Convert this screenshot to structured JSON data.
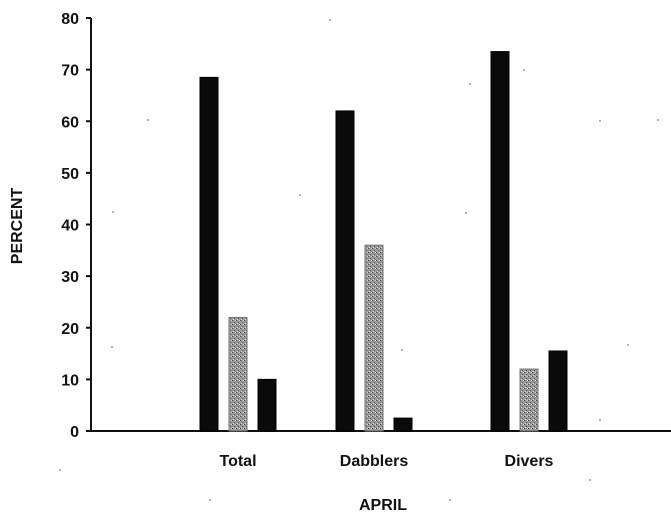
{
  "chart_data": {
    "type": "bar",
    "xlabel": "APRIL",
    "ylabel": "PERCENT",
    "ylim": [
      0,
      80
    ],
    "yticks": [
      0,
      10,
      20,
      30,
      40,
      50,
      60,
      70,
      80
    ],
    "categories": [
      "Total",
      "Dabblers",
      "Divers"
    ],
    "series": [
      {
        "values": [
          68.5,
          62,
          73.5
        ],
        "color": "#0a0a0a",
        "fill": "solid"
      },
      {
        "values": [
          22,
          36,
          12
        ],
        "color": "#8c8c8c",
        "fill": "stippled"
      },
      {
        "values": [
          10,
          2.5,
          15.5
        ],
        "color": "#0a0a0a",
        "fill": "solid"
      }
    ],
    "grid": false,
    "legend": "none"
  }
}
